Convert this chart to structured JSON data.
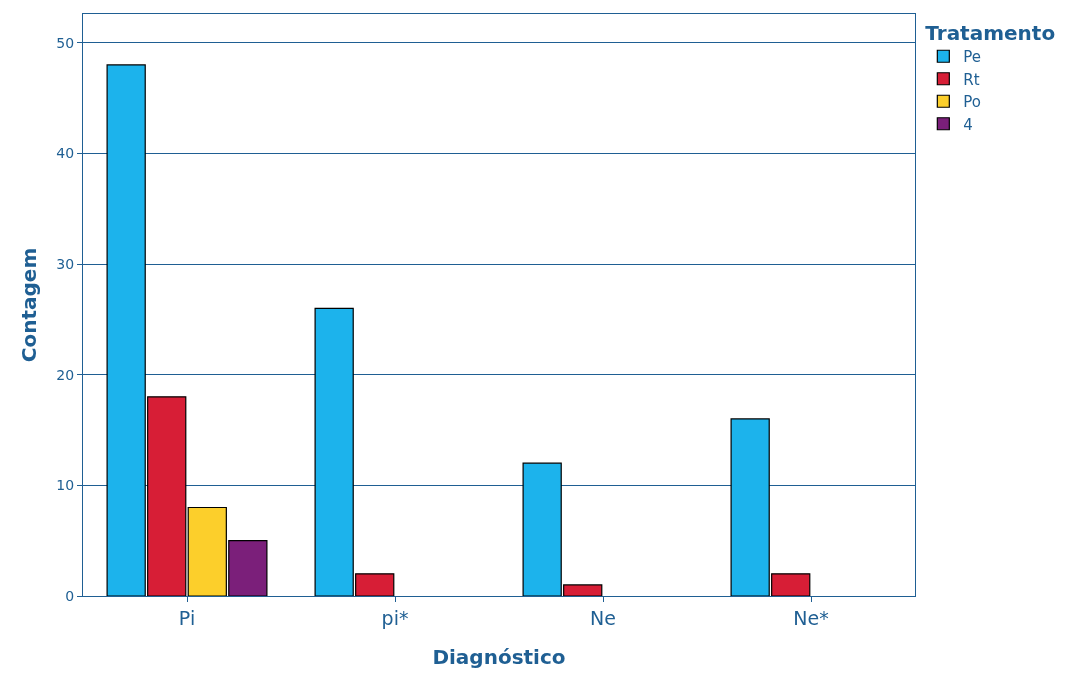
{
  "chart_data": {
    "type": "bar",
    "xlabel": "Diagnóstico",
    "ylabel": "Contagem",
    "legend_title": "Tratamento",
    "categories": [
      "Pi",
      "pi*",
      "Ne",
      "Ne*"
    ],
    "series": [
      {
        "name": "Pe",
        "color": "#1cb3ec",
        "values": [
          48,
          26,
          12,
          16
        ]
      },
      {
        "name": "Rt",
        "color": "#d71e36",
        "values": [
          18,
          2,
          1,
          2
        ]
      },
      {
        "name": "Po",
        "color": "#fccf2b",
        "values": [
          8,
          null,
          null,
          null
        ]
      },
      {
        "name": "4",
        "color": "#7b1f7a",
        "values": [
          5,
          null,
          null,
          null
        ]
      }
    ],
    "ylim": [
      0,
      52.6
    ],
    "yticks": [
      0,
      10,
      20,
      30,
      40,
      50
    ],
    "grid": "y",
    "legend": "top right"
  }
}
